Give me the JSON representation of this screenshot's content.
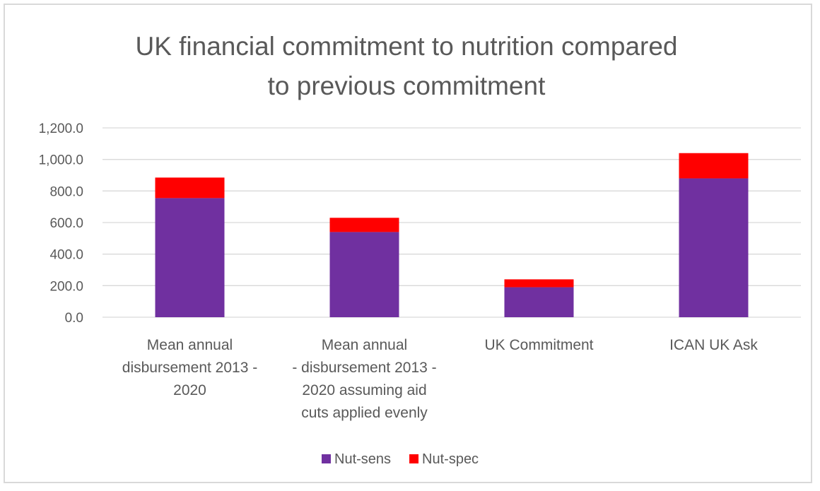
{
  "chart_data": {
    "type": "bar",
    "stacked": true,
    "title": "UK financial commitment to nutrition compared\nto previous commitment",
    "xlabel": "",
    "ylabel": "",
    "ylim": [
      0,
      1200
    ],
    "yticks": [
      0,
      200,
      400,
      600,
      800,
      1000,
      1200
    ],
    "ytick_labels": [
      "0.0",
      "200.0",
      "400.0",
      "600.0",
      "800.0",
      "1,000.0",
      "1,200.0"
    ],
    "grid": true,
    "legend_position": "bottom",
    "categories": [
      [
        "Mean annual",
        "disbursement 2013 -",
        "2020"
      ],
      [
        "Mean annual",
        "- disbursement 2013 -",
        "2020 assuming aid",
        "cuts applied evenly"
      ],
      [
        "UK Commitment"
      ],
      [
        "ICAN UK Ask"
      ]
    ],
    "series": [
      {
        "name": "Nut-sens",
        "color": "#7030a0",
        "values": [
          755,
          540,
          190,
          880
        ]
      },
      {
        "name": "Nut-spec",
        "color": "#ff0000",
        "values": [
          130,
          90,
          50,
          160
        ]
      }
    ]
  }
}
